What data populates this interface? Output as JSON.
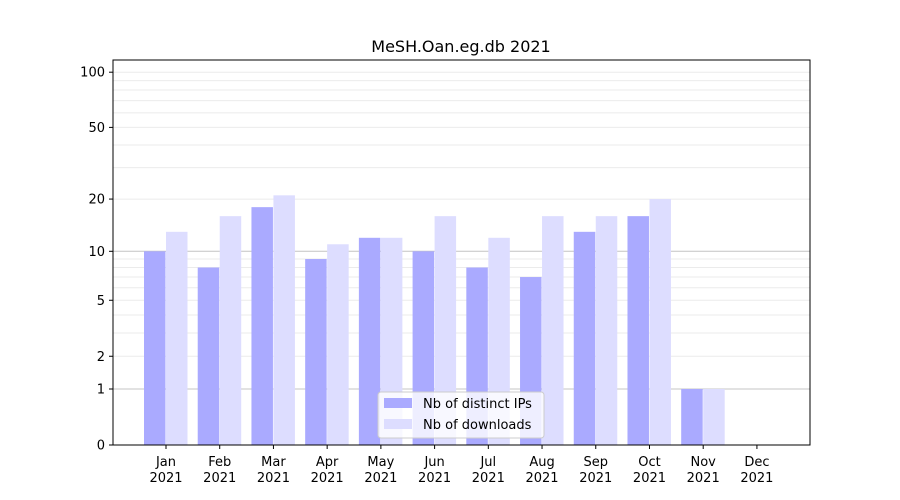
{
  "chart_data": {
    "type": "bar",
    "title": "MeSH.Oan.eg.db 2021",
    "xlabel": "",
    "ylabel": "",
    "yscale": "log(1+y)",
    "ylim": [
      0,
      110
    ],
    "yticks": [
      0,
      1,
      2,
      5,
      10,
      20,
      50,
      100
    ],
    "grid": true,
    "legend_position": "bottom-center",
    "categories": [
      "Jan\n2021",
      "Feb\n2021",
      "Mar\n2021",
      "Apr\n2021",
      "May\n2021",
      "Jun\n2021",
      "Jul\n2021",
      "Aug\n2021",
      "Sep\n2021",
      "Oct\n2021",
      "Nov\n2021",
      "Dec\n2021"
    ],
    "series": [
      {
        "name": "Nb of distinct IPs",
        "color": "#aaaaff",
        "values": [
          10,
          8,
          18,
          9,
          12,
          10,
          8,
          7,
          13,
          16,
          1,
          0
        ]
      },
      {
        "name": "Nb of downloads",
        "color": "#ddddff",
        "values": [
          13,
          16,
          21,
          11,
          12,
          16,
          12,
          16,
          16,
          20,
          1,
          0
        ]
      }
    ]
  }
}
